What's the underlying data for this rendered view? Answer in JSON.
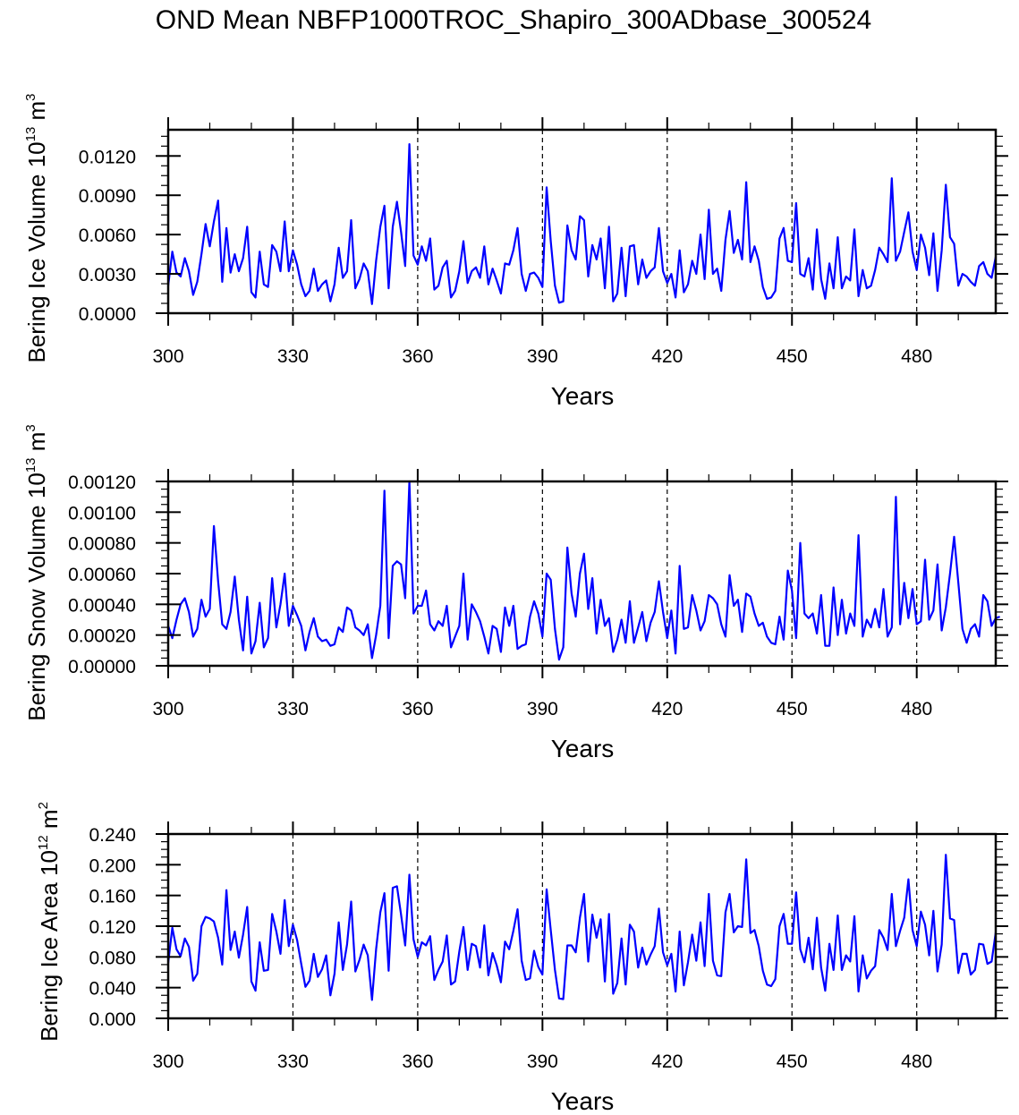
{
  "chart_data": [
    {
      "type": "line",
      "title": "OND Mean NBFP1000TROC_Shapiro_300ADbase_300524",
      "xlabel": "Years",
      "ylabel": "Bering Ice Volume",
      "ylabel_unit_base": "10",
      "ylabel_unit_exp": "13",
      "ylabel_unit_m": "m",
      "ylabel_unit_mexp": "3",
      "xlim": [
        300,
        499
      ],
      "ylim": [
        0,
        0.014
      ],
      "xticks": [
        "300",
        "330",
        "360",
        "390",
        "420",
        "450",
        "480"
      ],
      "xtick_values": [
        300,
        330,
        360,
        390,
        420,
        450,
        480
      ],
      "yticks": [
        "0.0000",
        "0.0030",
        "0.0060",
        "0.0090",
        "0.0120"
      ],
      "ytick_values": [
        0,
        0.003,
        0.006,
        0.009,
        0.012
      ],
      "vlines": [
        330,
        360,
        390,
        420,
        450,
        480
      ],
      "line_color": "#0000ff",
      "x_start": 300,
      "values": [
        0.0021,
        0.0047,
        0.0031,
        0.0028,
        0.0042,
        0.0032,
        0.0014,
        0.0024,
        0.0045,
        0.0068,
        0.0051,
        0.007,
        0.0086,
        0.0024,
        0.0065,
        0.0031,
        0.0045,
        0.0032,
        0.0042,
        0.0066,
        0.0016,
        0.0012,
        0.0047,
        0.0022,
        0.002,
        0.0052,
        0.0047,
        0.0032,
        0.007,
        0.0032,
        0.0048,
        0.0037,
        0.0022,
        0.0013,
        0.0017,
        0.0034,
        0.0017,
        0.0022,
        0.0025,
        0.0009,
        0.0022,
        0.005,
        0.0027,
        0.0032,
        0.0071,
        0.0019,
        0.0026,
        0.0038,
        0.0032,
        0.0007,
        0.004,
        0.0066,
        0.0082,
        0.0019,
        0.0066,
        0.0085,
        0.0062,
        0.0036,
        0.0129,
        0.0044,
        0.0037,
        0.0051,
        0.004,
        0.0057,
        0.0018,
        0.0021,
        0.0035,
        0.004,
        0.0012,
        0.0017,
        0.0032,
        0.0055,
        0.0023,
        0.0032,
        0.0035,
        0.0027,
        0.0051,
        0.0022,
        0.0034,
        0.0025,
        0.0015,
        0.0038,
        0.0037,
        0.0048,
        0.0065,
        0.003,
        0.0017,
        0.003,
        0.0031,
        0.0027,
        0.002,
        0.0096,
        0.0055,
        0.0021,
        0.0008,
        0.0009,
        0.0067,
        0.0048,
        0.0041,
        0.0074,
        0.0071,
        0.0028,
        0.0052,
        0.0041,
        0.0057,
        0.0019,
        0.0066,
        0.0009,
        0.0015,
        0.005,
        0.0013,
        0.0051,
        0.0052,
        0.0022,
        0.0041,
        0.0027,
        0.0032,
        0.0035,
        0.0065,
        0.0032,
        0.0023,
        0.003,
        0.0012,
        0.0048,
        0.0016,
        0.0022,
        0.004,
        0.003,
        0.006,
        0.0026,
        0.0079,
        0.003,
        0.0034,
        0.0017,
        0.0056,
        0.0078,
        0.0046,
        0.0056,
        0.0041,
        0.01,
        0.0039,
        0.0051,
        0.004,
        0.002,
        0.0011,
        0.0012,
        0.0017,
        0.0057,
        0.0065,
        0.004,
        0.0039,
        0.0084,
        0.003,
        0.0028,
        0.0042,
        0.0018,
        0.0064,
        0.0026,
        0.0011,
        0.0038,
        0.0019,
        0.0058,
        0.0019,
        0.0028,
        0.0025,
        0.0064,
        0.0013,
        0.0033,
        0.0019,
        0.0021,
        0.0033,
        0.005,
        0.0045,
        0.0039,
        0.0103,
        0.004,
        0.0047,
        0.0062,
        0.0077,
        0.0047,
        0.0033,
        0.006,
        0.005,
        0.0029,
        0.0061,
        0.0017,
        0.0048,
        0.0098,
        0.0058,
        0.0053,
        0.0021,
        0.003,
        0.0028,
        0.0024,
        0.0021,
        0.0036,
        0.0039,
        0.003,
        0.0027,
        0.0043
      ]
    },
    {
      "type": "line",
      "xlabel": "Years",
      "ylabel": "Bering Snow Volume",
      "ylabel_unit_base": "10",
      "ylabel_unit_exp": "13",
      "ylabel_unit_m": "m",
      "ylabel_unit_mexp": "3",
      "xlim": [
        300,
        499
      ],
      "ylim": [
        0,
        0.0012
      ],
      "xticks": [
        "300",
        "330",
        "360",
        "390",
        "420",
        "450",
        "480"
      ],
      "xtick_values": [
        300,
        330,
        360,
        390,
        420,
        450,
        480
      ],
      "yticks": [
        "0.00000",
        "0.00020",
        "0.00040",
        "0.00060",
        "0.00080",
        "0.00100",
        "0.00120"
      ],
      "ytick_values": [
        0,
        0.0002,
        0.0004,
        0.0006,
        0.0008,
        0.001,
        0.0012
      ],
      "vlines": [
        330,
        360,
        390,
        420,
        450,
        480
      ],
      "line_color": "#0000ff",
      "x_start": 300,
      "values": [
        0.00026,
        0.00018,
        0.0003,
        0.0004,
        0.00044,
        0.00035,
        0.00019,
        0.00024,
        0.00043,
        0.00032,
        0.00037,
        0.00091,
        0.00055,
        0.00027,
        0.00024,
        0.00035,
        0.00058,
        0.0003,
        0.0001,
        0.00045,
        8e-05,
        0.00016,
        0.00041,
        0.00012,
        0.00018,
        0.00057,
        0.00025,
        0.0004,
        0.0006,
        0.00026,
        0.00039,
        0.00033,
        0.00026,
        0.0001,
        0.00022,
        0.00031,
        0.00019,
        0.00016,
        0.00017,
        0.00013,
        0.00014,
        0.00025,
        0.00022,
        0.00038,
        0.00036,
        0.00025,
        0.00023,
        0.0002,
        0.00027,
        5e-05,
        0.0002,
        0.00039,
        0.00114,
        0.00018,
        0.00065,
        0.00068,
        0.00066,
        0.00044,
        0.0012,
        0.00034,
        0.00039,
        0.00039,
        0.00049,
        0.00027,
        0.00023,
        0.00029,
        0.00026,
        0.00039,
        0.00012,
        0.00019,
        0.00026,
        0.0006,
        0.00017,
        0.0004,
        0.00035,
        0.00029,
        0.00019,
        8e-05,
        0.00026,
        0.00024,
        9e-05,
        0.00038,
        0.00026,
        0.00039,
        0.00011,
        0.00013,
        0.00014,
        0.00032,
        0.00042,
        0.00034,
        0.00019,
        0.0006,
        0.00056,
        0.00024,
        4e-05,
        0.00012,
        0.00077,
        0.00047,
        0.00032,
        0.0006,
        0.00073,
        0.00037,
        0.00057,
        0.00021,
        0.00043,
        0.00026,
        0.00031,
        9e-05,
        0.00017,
        0.0003,
        0.00015,
        0.00042,
        0.00015,
        0.00025,
        0.00035,
        0.00016,
        0.00028,
        0.00035,
        0.00055,
        0.00035,
        0.00018,
        0.00036,
        8e-05,
        0.00065,
        0.00024,
        0.00025,
        0.00046,
        0.00036,
        0.00023,
        0.00029,
        0.00046,
        0.00044,
        0.0004,
        0.00027,
        0.00019,
        0.00059,
        0.00039,
        0.00043,
        0.00022,
        0.00047,
        0.00045,
        0.00034,
        0.00026,
        0.00028,
        0.00019,
        0.00015,
        0.00014,
        0.00032,
        0.00017,
        0.00062,
        0.00049,
        0.00018,
        0.0008,
        0.00034,
        0.00031,
        0.00034,
        0.00021,
        0.00046,
        0.00013,
        0.00013,
        0.00051,
        0.0002,
        0.00043,
        0.00021,
        0.00034,
        0.00026,
        0.00085,
        0.00019,
        0.0003,
        0.00025,
        0.00037,
        0.00025,
        0.0005,
        0.00019,
        0.00025,
        0.0011,
        0.00027,
        0.00054,
        0.00031,
        0.0005,
        0.00027,
        0.00029,
        0.00069,
        0.0003,
        0.00036,
        0.00066,
        0.00023,
        0.00038,
        0.0006,
        0.00084,
        0.00054,
        0.00024,
        0.00015,
        0.00024,
        0.00027,
        0.00019,
        0.00046,
        0.00042,
        0.00026,
        0.00031,
        0.00032
      ]
    },
    {
      "type": "line",
      "xlabel": "Years",
      "ylabel": "Bering Ice Area",
      "ylabel_unit_base": "10",
      "ylabel_unit_exp": "12",
      "ylabel_unit_m": "m",
      "ylabel_unit_mexp": "2",
      "xlim": [
        300,
        499
      ],
      "ylim": [
        0,
        0.24
      ],
      "xticks": [
        "300",
        "330",
        "360",
        "390",
        "420",
        "450",
        "480"
      ],
      "xtick_values": [
        300,
        330,
        360,
        390,
        420,
        450,
        480
      ],
      "yticks": [
        "0.000",
        "0.040",
        "0.080",
        "0.120",
        "0.160",
        "0.200",
        "0.240"
      ],
      "ytick_values": [
        0,
        0.04,
        0.08,
        0.12,
        0.16,
        0.2,
        0.24
      ],
      "vlines": [
        330,
        360,
        390,
        420,
        450,
        480
      ],
      "line_color": "#0000ff",
      "x_start": 300,
      "values": [
        0.072,
        0.118,
        0.09,
        0.081,
        0.104,
        0.093,
        0.049,
        0.058,
        0.12,
        0.132,
        0.13,
        0.126,
        0.105,
        0.07,
        0.167,
        0.089,
        0.113,
        0.079,
        0.109,
        0.145,
        0.048,
        0.036,
        0.099,
        0.062,
        0.063,
        0.136,
        0.113,
        0.084,
        0.154,
        0.094,
        0.122,
        0.102,
        0.071,
        0.041,
        0.049,
        0.084,
        0.054,
        0.064,
        0.082,
        0.03,
        0.058,
        0.125,
        0.063,
        0.096,
        0.152,
        0.061,
        0.076,
        0.096,
        0.082,
        0.024,
        0.09,
        0.138,
        0.163,
        0.062,
        0.17,
        0.172,
        0.135,
        0.095,
        0.187,
        0.103,
        0.08,
        0.099,
        0.095,
        0.107,
        0.05,
        0.063,
        0.074,
        0.108,
        0.044,
        0.048,
        0.087,
        0.119,
        0.063,
        0.097,
        0.094,
        0.066,
        0.121,
        0.056,
        0.085,
        0.069,
        0.047,
        0.1,
        0.09,
        0.114,
        0.142,
        0.075,
        0.05,
        0.052,
        0.088,
        0.067,
        0.057,
        0.168,
        0.115,
        0.063,
        0.026,
        0.025,
        0.095,
        0.095,
        0.086,
        0.131,
        0.162,
        0.074,
        0.135,
        0.105,
        0.129,
        0.048,
        0.136,
        0.032,
        0.046,
        0.104,
        0.044,
        0.122,
        0.113,
        0.066,
        0.092,
        0.07,
        0.083,
        0.094,
        0.143,
        0.086,
        0.069,
        0.084,
        0.035,
        0.113,
        0.043,
        0.073,
        0.109,
        0.075,
        0.125,
        0.068,
        0.162,
        0.075,
        0.056,
        0.055,
        0.138,
        0.162,
        0.112,
        0.12,
        0.119,
        0.207,
        0.111,
        0.115,
        0.094,
        0.062,
        0.044,
        0.042,
        0.051,
        0.12,
        0.136,
        0.097,
        0.097,
        0.164,
        0.09,
        0.073,
        0.105,
        0.064,
        0.131,
        0.066,
        0.036,
        0.097,
        0.063,
        0.134,
        0.063,
        0.082,
        0.074,
        0.133,
        0.035,
        0.082,
        0.052,
        0.062,
        0.068,
        0.115,
        0.105,
        0.089,
        0.162,
        0.094,
        0.114,
        0.131,
        0.181,
        0.115,
        0.094,
        0.139,
        0.122,
        0.082,
        0.14,
        0.061,
        0.096,
        0.213,
        0.13,
        0.128,
        0.059,
        0.084,
        0.084,
        0.057,
        0.063,
        0.097,
        0.096,
        0.071,
        0.074,
        0.112
      ]
    }
  ]
}
